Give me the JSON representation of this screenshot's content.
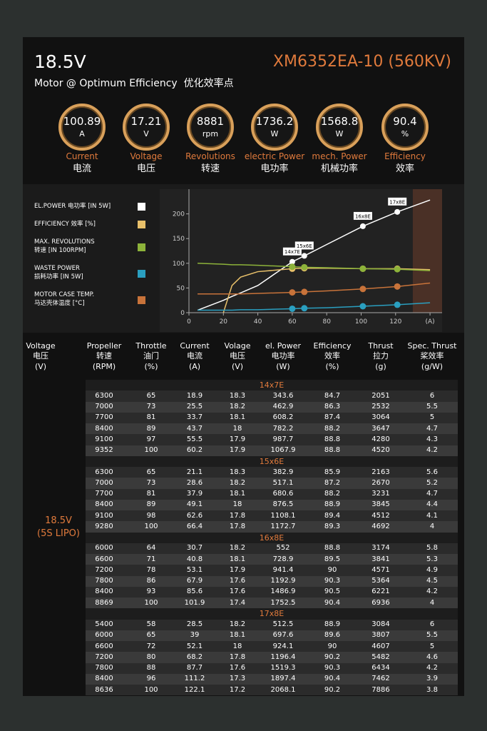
{
  "header": {
    "voltage": "18.5V",
    "model": "XM6352EA-10 (560KV)",
    "subtitle": "Motor @ Optimum Efficiency  优化效率点"
  },
  "gauges": [
    {
      "value": "100.89",
      "unit": "A",
      "label_en": "Current",
      "label_cn": "电流"
    },
    {
      "value": "17.21",
      "unit": "V",
      "label_en": "Voltage",
      "label_cn": "电压"
    },
    {
      "value": "8881",
      "unit": "rpm",
      "label_en": "Revolutions",
      "label_cn": "转速"
    },
    {
      "value": "1736.2",
      "unit": "W",
      "label_en": "electric Power",
      "label_cn": "电功率"
    },
    {
      "value": "1568.8",
      "unit": "W",
      "label_en": "mech. Power",
      "label_cn": "机械功率"
    },
    {
      "value": "90.4",
      "unit": "%",
      "label_en": "Efficiency",
      "label_cn": "效率"
    }
  ],
  "chart_data": {
    "type": "line",
    "x": [
      5,
      20,
      25,
      30,
      40,
      60,
      67,
      80,
      101,
      121,
      140
    ],
    "point_labels": [
      null,
      null,
      null,
      null,
      null,
      "14x7E",
      "15x6E",
      null,
      "16x8E",
      "17x8E",
      null
    ],
    "series": [
      {
        "name": "EL.POWER 电功率 [IN 5W]",
        "color": "#ffffff",
        "values": [
          5,
          25,
          33,
          40,
          55,
          103,
          115,
          138,
          175,
          204,
          228
        ]
      },
      {
        "name": "EFFICIENCY 效率 [%]",
        "color": "#e8c06a",
        "values": [
          null,
          0,
          55,
          72,
          83,
          89,
          90,
          90,
          89,
          89,
          87
        ]
      },
      {
        "name": "MAX. REVOLUTIONS\n转速 [IN 100RPM]",
        "color": "#8db33a",
        "values": [
          100,
          98,
          97,
          97,
          96,
          93,
          92,
          91,
          89,
          88,
          85
        ]
      },
      {
        "name": "WASTE POWER\n损耗功率 [IN 5W]",
        "color": "#2a9fc0",
        "values": [
          5,
          5,
          5,
          6,
          6,
          8,
          9,
          10,
          13,
          16,
          20
        ]
      },
      {
        "name": "MOTOR CASE TEMP.\n马达壳体温度 [°C]",
        "color": "#c8733a",
        "values": [
          38,
          38,
          38,
          38,
          39,
          41,
          42,
          44,
          48,
          53,
          60
        ]
      }
    ],
    "xlim": [
      0,
      147
    ],
    "ylim": [
      0,
      250
    ],
    "xticks": [
      0,
      20,
      40,
      60,
      80,
      100,
      120,
      {
        "value": 140,
        "label": "(A)"
      }
    ],
    "yticks": [
      0,
      50,
      100,
      150,
      200
    ],
    "shade": [
      130,
      147
    ]
  },
  "table": {
    "columns": [
      "Voltage\n电压\n(V)",
      "Propeller\n转速\n(RPM)",
      "Throttle\n油门\n(%)",
      "Current\n电流\n(A)",
      "Volage\n电压\n(V)",
      "el. Power\n电功率\n(W)",
      "Efficiency\n效率\n(%)",
      "Thrust\n拉力\n(g)",
      "Spec. Thrust\n桨效率\n(g/W)"
    ],
    "voltage": "18.5V\n(5S LIPO)",
    "groups": [
      {
        "name": "14x7E",
        "rows": [
          [
            "6300",
            "65",
            "18.9",
            "18.3",
            "343.6",
            "84.7",
            "2051",
            "6"
          ],
          [
            "7000",
            "73",
            "25.5",
            "18.2",
            "462.9",
            "86.3",
            "2532",
            "5.5"
          ],
          [
            "7700",
            "81",
            "33.7",
            "18.1",
            "608.2",
            "87.4",
            "3064",
            "5"
          ],
          [
            "8400",
            "89",
            "43.7",
            "18",
            "782.2",
            "88.2",
            "3647",
            "4.7"
          ],
          [
            "9100",
            "97",
            "55.5",
            "17.9",
            "987.7",
            "88.8",
            "4280",
            "4.3"
          ],
          [
            "9352",
            "100",
            "60.2",
            "17.9",
            "1067.9",
            "88.8",
            "4520",
            "4.2"
          ]
        ]
      },
      {
        "name": "15x6E",
        "rows": [
          [
            "6300",
            "65",
            "21.1",
            "18.3",
            "382.9",
            "85.9",
            "2163",
            "5.6"
          ],
          [
            "7000",
            "73",
            "28.6",
            "18.2",
            "517.1",
            "87.2",
            "2670",
            "5.2"
          ],
          [
            "7700",
            "81",
            "37.9",
            "18.1",
            "680.6",
            "88.2",
            "3231",
            "4.7"
          ],
          [
            "8400",
            "89",
            "49.1",
            "18",
            "876.5",
            "88.9",
            "3845",
            "4.4"
          ],
          [
            "9100",
            "98",
            "62.6",
            "17.8",
            "1108.1",
            "89.4",
            "4512",
            "4.1"
          ],
          [
            "9280",
            "100",
            "66.4",
            "17.8",
            "1172.7",
            "89.3",
            "4692",
            "4"
          ]
        ]
      },
      {
        "name": "16x8E",
        "rows": [
          [
            "6000",
            "64",
            "30.7",
            "18.2",
            "552",
            "88.8",
            "3174",
            "5.8"
          ],
          [
            "6600",
            "71",
            "40.8",
            "18.1",
            "728.9",
            "89.5",
            "3841",
            "5.3"
          ],
          [
            "7200",
            "78",
            "53.1",
            "17.9",
            "941.4",
            "90",
            "4571",
            "4.9"
          ],
          [
            "7800",
            "86",
            "67.9",
            "17.6",
            "1192.9",
            "90.3",
            "5364",
            "4.5"
          ],
          [
            "8400",
            "93",
            "85.6",
            "17.6",
            "1486.9",
            "90.5",
            "6221",
            "4.2"
          ],
          [
            "8869",
            "100",
            "101.9",
            "17.4",
            "1752.5",
            "90.4",
            "6936",
            "4"
          ]
        ]
      },
      {
        "name": "17x8E",
        "rows": [
          [
            "5400",
            "58",
            "28.5",
            "18.2",
            "512.5",
            "88.9",
            "3084",
            "6"
          ],
          [
            "6000",
            "65",
            "39",
            "18.1",
            "697.6",
            "89.6",
            "3807",
            "5.5"
          ],
          [
            "6600",
            "72",
            "52.1",
            "18",
            "924.1",
            "90",
            "4607",
            "5"
          ],
          [
            "7200",
            "80",
            "68.2",
            "17.8",
            "1196.4",
            "90.2",
            "5482",
            "4.6"
          ],
          [
            "7800",
            "88",
            "87.7",
            "17.6",
            "1519.3",
            "90.3",
            "6434",
            "4.2"
          ],
          [
            "8400",
            "96",
            "111.2",
            "17.3",
            "1897.4",
            "90.4",
            "7462",
            "3.9"
          ],
          [
            "8636",
            "100",
            "122.1",
            "17.2",
            "2068.1",
            "90.2",
            "7886",
            "3.8"
          ]
        ]
      }
    ]
  }
}
